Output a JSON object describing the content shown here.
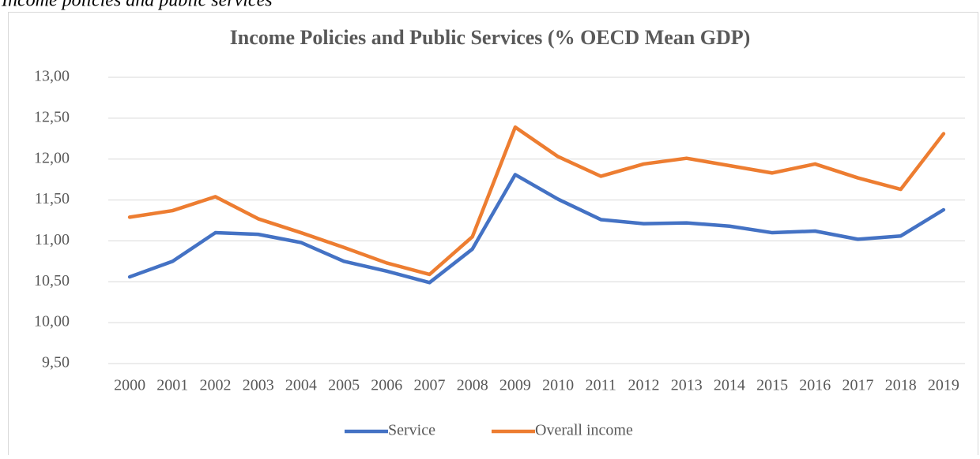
{
  "caption": "Income policies and public services",
  "chart_data": {
    "type": "line",
    "title": "Income Policies and Public Services (% OECD Mean GDP)",
    "categories": [
      "2000",
      "2001",
      "2002",
      "2003",
      "2004",
      "2005",
      "2006",
      "2007",
      "2008",
      "2009",
      "2010",
      "2011",
      "2012",
      "2013",
      "2014",
      "2015",
      "2016",
      "2017",
      "2018",
      "2019"
    ],
    "series": [
      {
        "name": "Service",
        "color": "#4472c4",
        "values": [
          10.56,
          10.75,
          11.1,
          11.08,
          10.98,
          10.75,
          10.63,
          10.49,
          10.9,
          11.81,
          11.51,
          11.26,
          11.21,
          11.22,
          11.18,
          11.1,
          11.12,
          11.02,
          11.06,
          11.38
        ]
      },
      {
        "name": "Overall income",
        "color": "#ed7d31",
        "values": [
          11.29,
          11.37,
          11.54,
          11.27,
          11.1,
          10.92,
          10.73,
          10.59,
          11.05,
          12.39,
          12.03,
          11.79,
          11.94,
          12.01,
          11.92,
          11.83,
          11.94,
          11.77,
          11.63,
          12.31
        ]
      }
    ],
    "ylim": [
      9.5,
      13
    ],
    "yticks": [
      {
        "value": 9.5,
        "label": "9,50"
      },
      {
        "value": 10,
        "label": "10,00"
      },
      {
        "value": 10.5,
        "label": "10,50"
      },
      {
        "value": 11,
        "label": "11,00"
      },
      {
        "value": 11.5,
        "label": "11,50"
      },
      {
        "value": 12,
        "label": "12,00"
      },
      {
        "value": 12.5,
        "label": "12,50"
      },
      {
        "value": 13,
        "label": "13,00"
      }
    ],
    "grid": true,
    "legend": "bottom"
  }
}
